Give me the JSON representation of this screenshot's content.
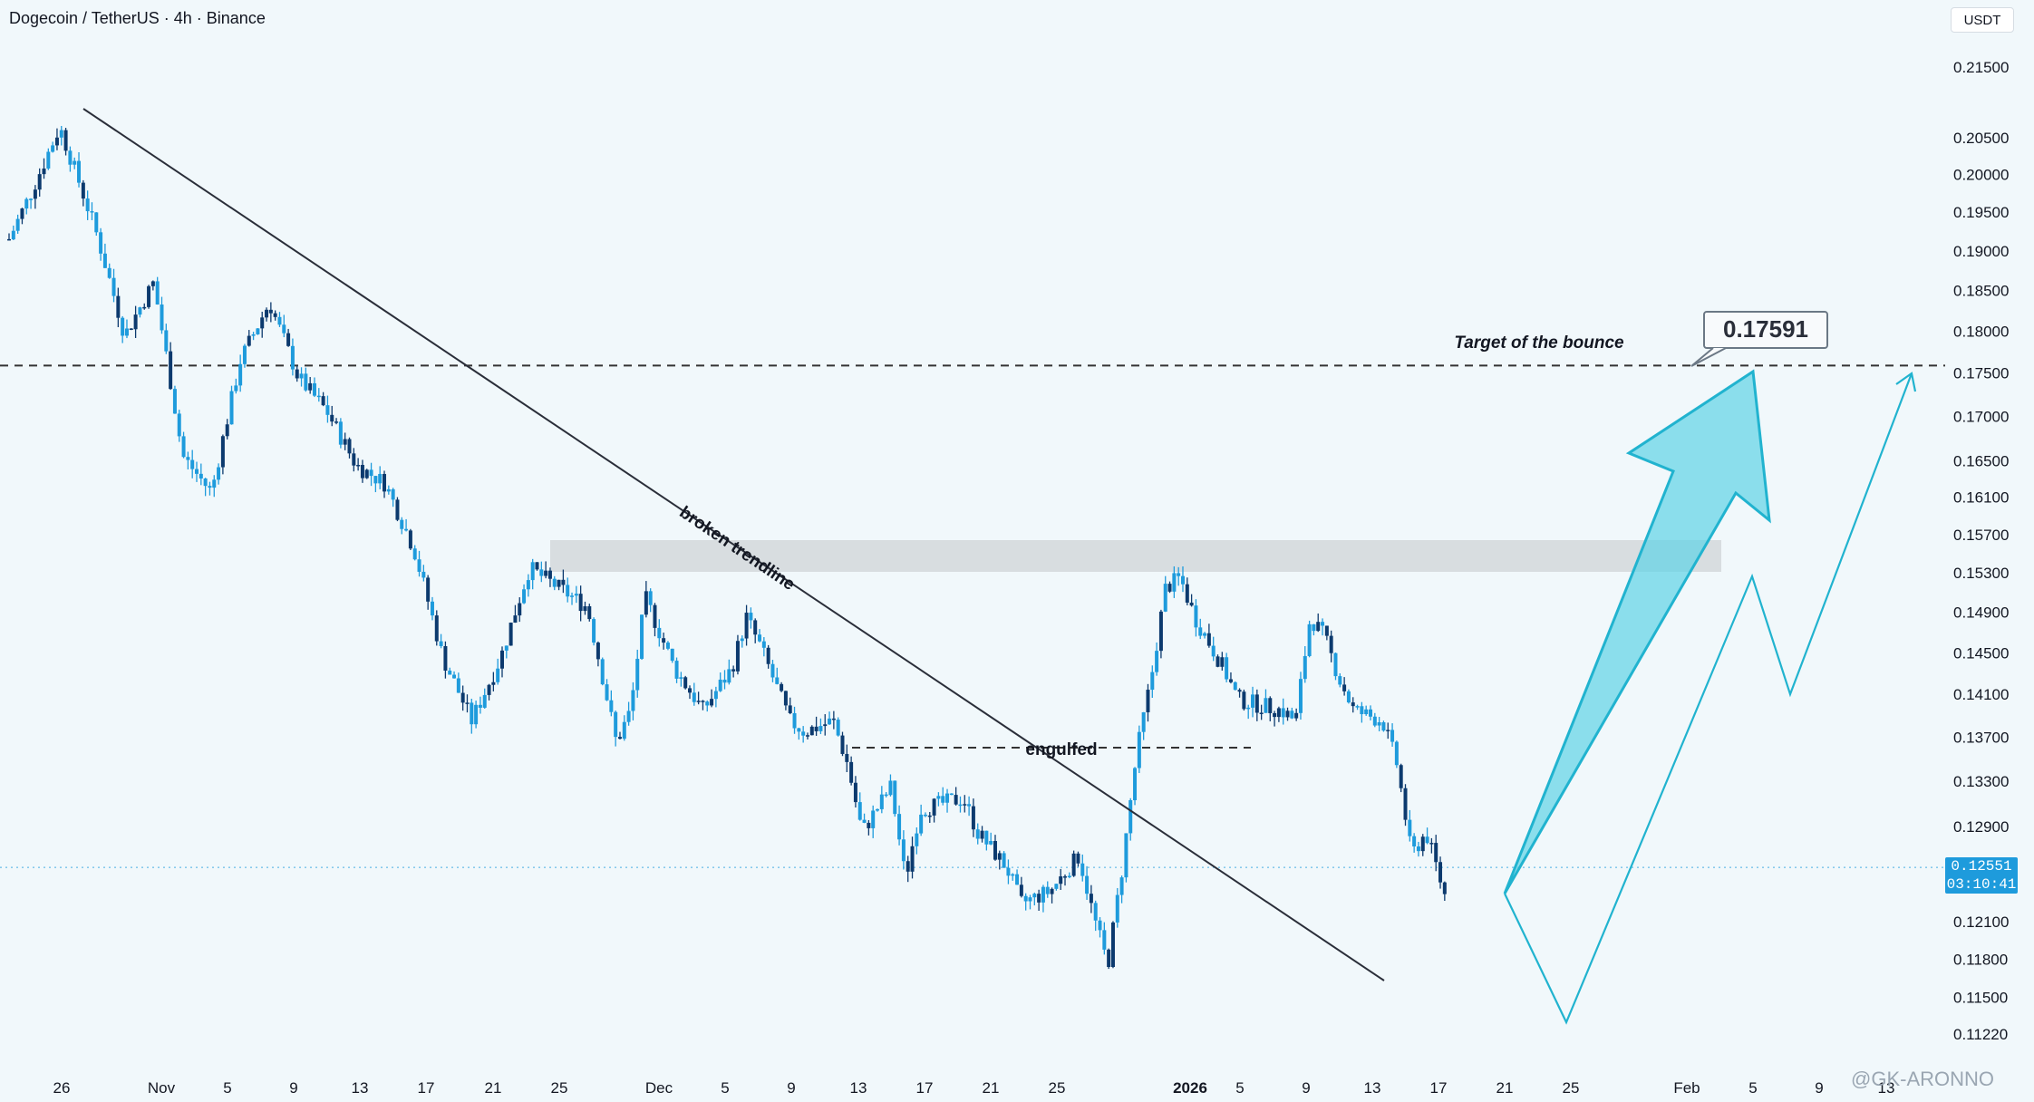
{
  "header": {
    "symbol": "Dogecoin / TetherUS · 4h · Binance",
    "currency_button": "USDT"
  },
  "last_price": {
    "value": "0.12551",
    "countdown": "03:10:41"
  },
  "watermark": "@GK-ARONNO",
  "chart_data": {
    "type": "candlestick",
    "y_axis": {
      "ticks": [
        "0.21500",
        "0.20500",
        "0.20000",
        "0.19500",
        "0.19000",
        "0.18500",
        "0.18000",
        "0.17500",
        "0.17000",
        "0.16500",
        "0.16100",
        "0.15700",
        "0.15300",
        "0.14900",
        "0.14500",
        "0.14100",
        "0.13700",
        "0.13300",
        "0.12900",
        "0.12100",
        "0.11800",
        "0.11500",
        "0.11220"
      ],
      "range": [
        0.1106,
        0.2185
      ],
      "scale": "log"
    },
    "x_axis": {
      "ticks": [
        "26",
        "Nov",
        "5",
        "9",
        "13",
        "17",
        "21",
        "25",
        "Dec",
        "5",
        "9",
        "13",
        "17",
        "21",
        "25",
        "2026",
        "5",
        "9",
        "13",
        "17",
        "21",
        "25",
        "Feb",
        "5",
        "9",
        "13"
      ]
    },
    "price_path": [
      [
        0,
        0.1915
      ],
      [
        1.5,
        0.1975
      ],
      [
        3.5,
        0.2065
      ],
      [
        6,
        0.1925
      ],
      [
        8,
        0.1795
      ],
      [
        10,
        0.186
      ],
      [
        12,
        0.1655
      ],
      [
        14,
        0.1615
      ],
      [
        16,
        0.1765
      ],
      [
        18,
        0.1835
      ],
      [
        20,
        0.1745
      ],
      [
        22,
        0.1705
      ],
      [
        24,
        0.1645
      ],
      [
        26,
        0.1625
      ],
      [
        28,
        0.1555
      ],
      [
        30,
        0.1445
      ],
      [
        32,
        0.1385
      ],
      [
        34,
        0.1445
      ],
      [
        36,
        0.1535
      ],
      [
        38,
        0.1515
      ],
      [
        40,
        0.1495
      ],
      [
        42,
        0.1365
      ],
      [
        43,
        0.1395
      ],
      [
        44,
        0.1505
      ],
      [
        46,
        0.1435
      ],
      [
        48,
        0.1395
      ],
      [
        50,
        0.1435
      ],
      [
        51,
        0.1485
      ],
      [
        52,
        0.1455
      ],
      [
        54,
        0.1385
      ],
      [
        55,
        0.1375
      ],
      [
        57,
        0.1385
      ],
      [
        58,
        0.1345
      ],
      [
        59,
        0.1285
      ],
      [
        60,
        0.1305
      ],
      [
        61,
        0.1325
      ],
      [
        62,
        0.1245
      ],
      [
        63,
        0.1305
      ],
      [
        66,
        0.1315
      ],
      [
        67,
        0.1285
      ],
      [
        69,
        0.1255
      ],
      [
        70,
        0.1225
      ],
      [
        72,
        0.1235
      ],
      [
        74,
        0.1265
      ],
      [
        75,
        0.1215
      ],
      [
        76,
        0.1175
      ],
      [
        77,
        0.1255
      ],
      [
        78,
        0.1355
      ],
      [
        79,
        0.1425
      ],
      [
        80,
        0.1515
      ],
      [
        81,
        0.1525
      ],
      [
        82,
        0.1485
      ],
      [
        84,
        0.1435
      ],
      [
        85,
        0.1405
      ],
      [
        88,
        0.1395
      ],
      [
        89,
        0.1385
      ],
      [
        90,
        0.1485
      ],
      [
        91,
        0.1465
      ],
      [
        92,
        0.1425
      ],
      [
        93,
        0.1395
      ],
      [
        95,
        0.1385
      ],
      [
        96,
        0.1345
      ],
      [
        97,
        0.1265
      ],
      [
        98,
        0.1285
      ],
      [
        99.3,
        0.1232
      ]
    ],
    "annotations": {
      "target_label": "Target of the bounce",
      "target_value": "0.17591",
      "trendline_label": "broken trendline",
      "engulfed_label": "engulfed"
    },
    "grid": false
  },
  "colors": {
    "background": "#f1f8fb",
    "candle_body": "#1e9bdc",
    "candle_dark": "#0c3a6e",
    "projection": "#21b3cf",
    "arrow_fill": "#5fd3e5",
    "zone": "#d3d8da",
    "text": "#131722",
    "last_price": "#1e9bdc"
  }
}
